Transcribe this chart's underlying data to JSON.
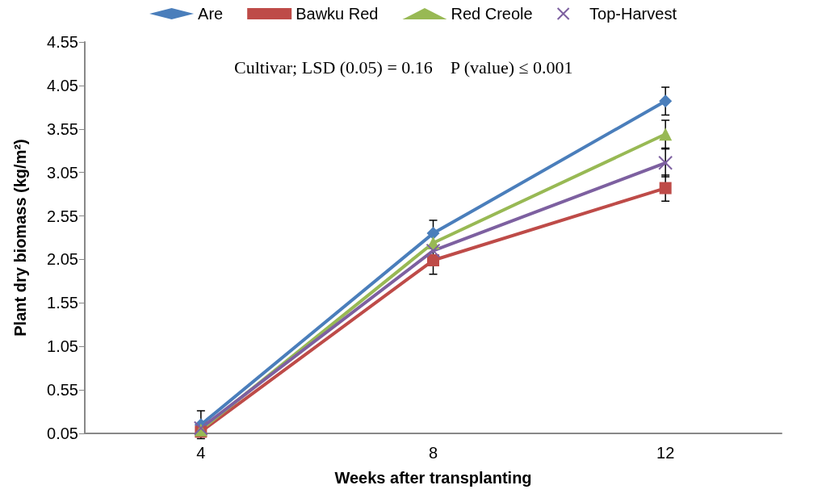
{
  "chart_data": {
    "type": "line",
    "xlabel": "Weeks after transplanting",
    "ylabel": "Plant dry biomass (kg/m²)",
    "categories": [
      "4",
      "8",
      "12"
    ],
    "series": [
      {
        "name": "Are",
        "color": "#4a7ebb",
        "marker": "diamond",
        "values": [
          0.15,
          2.35,
          3.87
        ],
        "errors": [
          0.16,
          0.15,
          0.16
        ]
      },
      {
        "name": "Bawku Red",
        "color": "#be4b48",
        "marker": "square",
        "values": [
          0.07,
          2.04,
          2.87
        ],
        "errors": [
          null,
          0.16,
          0.15
        ]
      },
      {
        "name": "Red Creole",
        "color": "#98b954",
        "marker": "triangle",
        "values": [
          0.09,
          2.24,
          3.49
        ],
        "errors": [
          null,
          null,
          0.16
        ]
      },
      {
        "name": "Top-Harvest",
        "color": "#7d60a0",
        "marker": "cross",
        "values": [
          0.11,
          2.15,
          3.16
        ],
        "errors": [
          null,
          null,
          0.16
        ]
      }
    ],
    "ylim": [
      0.05,
      4.55
    ],
    "yticks": [
      0.05,
      0.55,
      1.05,
      1.55,
      2.05,
      2.55,
      3.05,
      3.55,
      4.05,
      4.55
    ],
    "annotations": [
      "Cultivar; LSD (0.05) = 0.16    P (value) ≤ 0.001"
    ],
    "legend": "top",
    "grid": false,
    "line_style": "solid"
  }
}
